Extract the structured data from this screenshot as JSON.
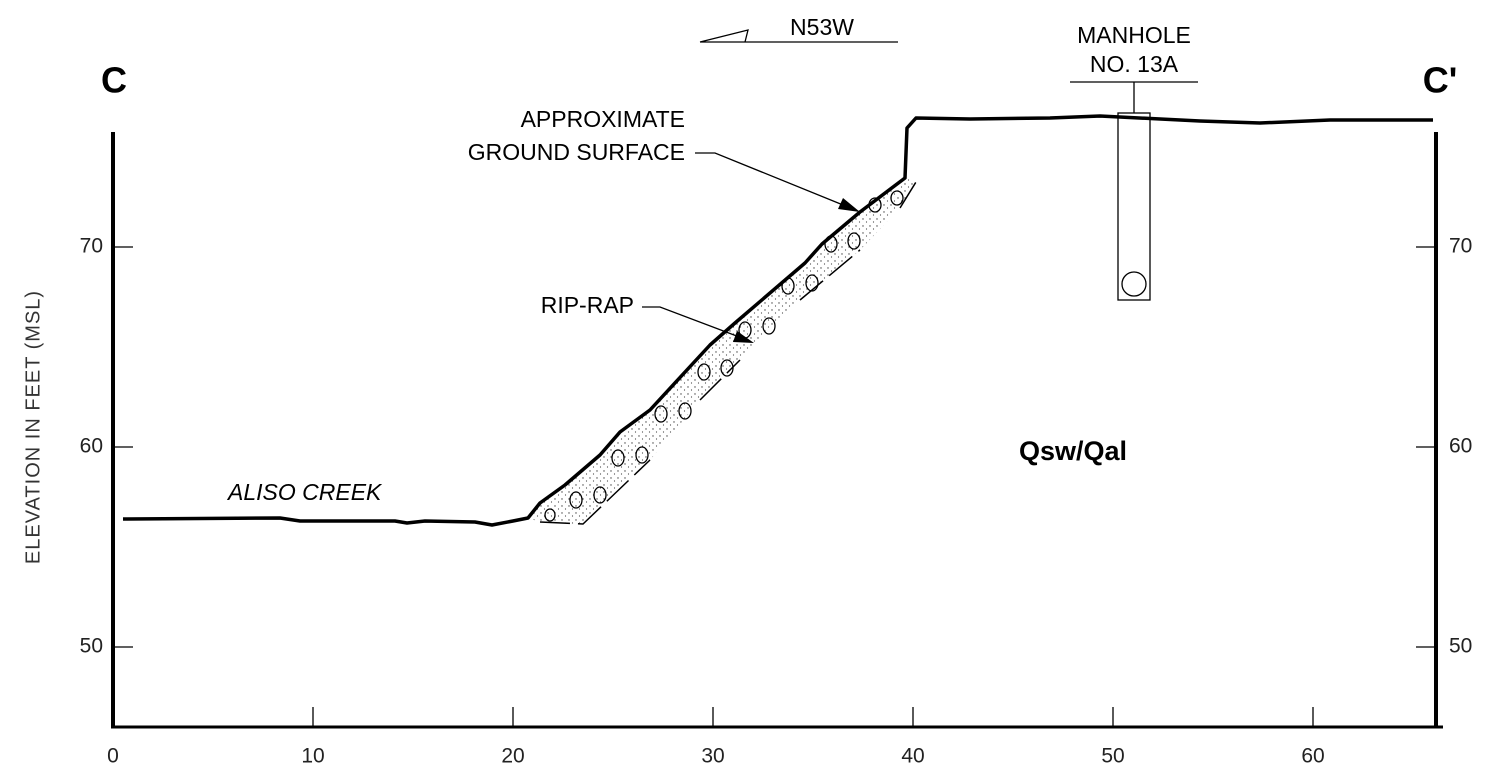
{
  "chart_data": {
    "type": "line",
    "section_start": "C",
    "section_end": "C'",
    "bearing": "N53W",
    "y_label": "ELEVATION IN FEET (MSL)",
    "manhole": [
      "MANHOLE",
      "NO. 13A"
    ],
    "ground_label": [
      "APPROXIMATE",
      "GROUND SURFACE"
    ],
    "riprap_label": "RIP-RAP",
    "creek_label": "ALISO CREEK",
    "unit_label": "Qsw/Qal",
    "xlim": [
      0,
      66.5
    ],
    "ylim": [
      46,
      76
    ],
    "xticks": [
      0,
      10,
      20,
      30,
      40,
      50,
      60
    ],
    "yticks": [
      50,
      60,
      70
    ],
    "color": "#000000",
    "x": [
      0.5,
      8.35,
      9.35,
      14.1,
      14.7,
      15.6,
      18.1,
      18.95,
      20,
      20.75,
      21.35,
      22.6,
      24.35,
      25.35,
      26.85,
      29.85,
      31.1,
      34.6,
      35.45,
      37.35,
      39.6,
      39.7,
      40.15,
      42.85,
      46.85,
      49.35,
      54.35,
      57.35,
      60.85,
      66
    ],
    "values": [
      56.4,
      56.45,
      56.3,
      56.3,
      56.2,
      56.3,
      56.25,
      56.1,
      56.3,
      56.45,
      57.2,
      58.1,
      59.6,
      60.75,
      61.85,
      65.1,
      66.2,
      69.2,
      70.15,
      71.75,
      73.45,
      75.95,
      76.45,
      76.4,
      76.45,
      76.55,
      76.3,
      76.2,
      76.35,
      76.35
    ]
  }
}
